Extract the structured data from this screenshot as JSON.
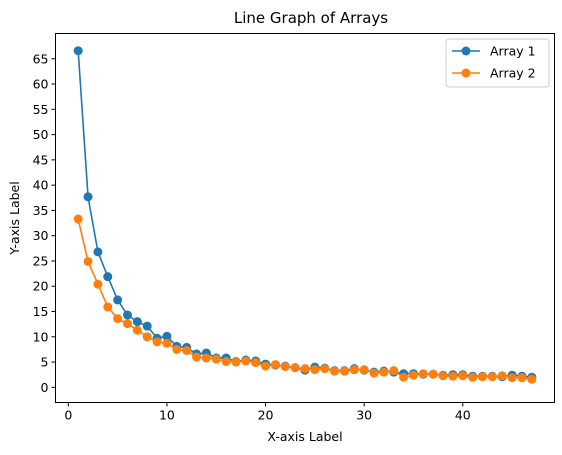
{
  "chart_data": {
    "type": "line",
    "title": "Line Graph of Arrays",
    "xlabel": "X-axis Label",
    "ylabel": "Y-axis Label",
    "xlim": [
      -1.3,
      49.3
    ],
    "ylim": [
      -3.0,
      70.0
    ],
    "xticks": [
      0,
      10,
      20,
      30,
      40
    ],
    "yticks": [
      0,
      5,
      10,
      15,
      20,
      25,
      30,
      35,
      40,
      45,
      50,
      55,
      60,
      65
    ],
    "grid": false,
    "legend_position": "top-right",
    "x": [
      1,
      2,
      3,
      4,
      5,
      6,
      7,
      8,
      9,
      10,
      11,
      12,
      13,
      14,
      15,
      16,
      17,
      18,
      19,
      20,
      21,
      22,
      23,
      24,
      25,
      26,
      27,
      28,
      29,
      30,
      31,
      32,
      33,
      34,
      35,
      36,
      37,
      38,
      39,
      40,
      41,
      42,
      43,
      44,
      45,
      46,
      47
    ],
    "series": [
      {
        "name": "Array 1",
        "color": "#1f77b4",
        "values": [
          66.6,
          37.7,
          26.8,
          21.9,
          17.3,
          14.3,
          13.0,
          12.1,
          9.7,
          10.1,
          8.1,
          7.9,
          6.6,
          6.8,
          5.8,
          5.8,
          5.1,
          5.4,
          5.2,
          4.6,
          4.4,
          4.2,
          3.9,
          3.4,
          4.0,
          3.8,
          3.3,
          3.3,
          3.7,
          3.4,
          3.0,
          3.2,
          3.0,
          2.7,
          2.7,
          2.6,
          2.6,
          2.4,
          2.5,
          2.5,
          2.2,
          2.2,
          2.2,
          2.1,
          2.4,
          2.2,
          2.0
        ]
      },
      {
        "name": "Array 2",
        "color": "#ff7f0e",
        "values": [
          33.3,
          24.9,
          20.4,
          15.9,
          13.6,
          12.6,
          11.3,
          10.0,
          9.0,
          8.7,
          7.5,
          7.3,
          6.0,
          5.8,
          5.6,
          5.1,
          5.0,
          5.2,
          4.9,
          4.2,
          4.5,
          4.1,
          3.9,
          3.7,
          3.5,
          3.7,
          3.2,
          3.2,
          3.5,
          3.5,
          2.8,
          3.0,
          3.3,
          2.0,
          2.4,
          2.7,
          2.6,
          2.3,
          2.2,
          2.3,
          2.0,
          2.1,
          2.1,
          2.3,
          1.9,
          1.9,
          1.6
        ]
      }
    ]
  }
}
